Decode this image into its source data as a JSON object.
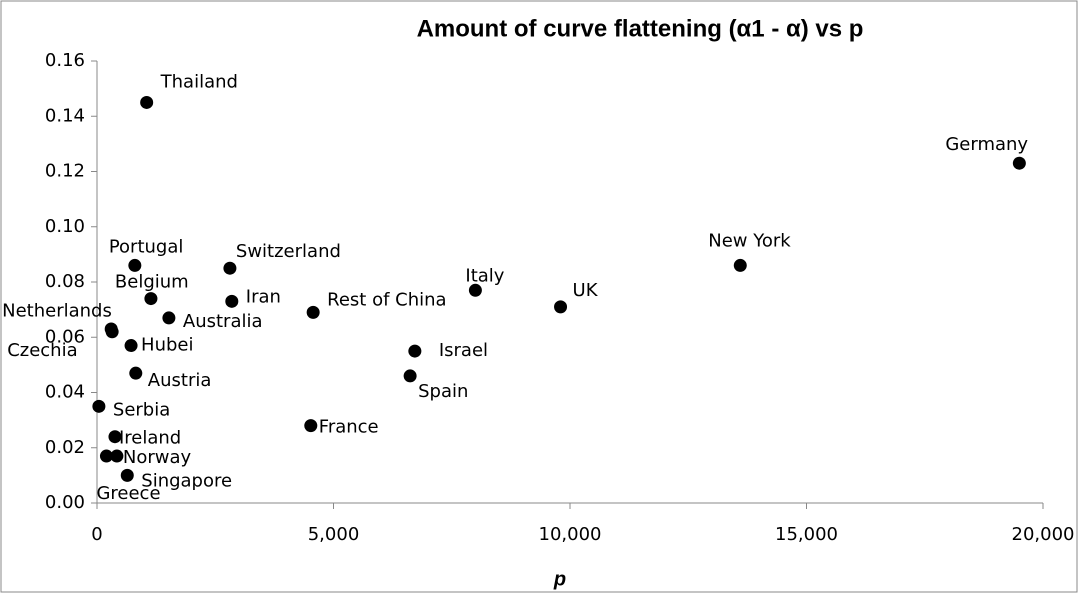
{
  "chart_data": {
    "type": "scatter",
    "title": "Amount of curve flattening (α1 - α) vs p",
    "x_label": "p",
    "color": "#000000",
    "grid": false,
    "xlim": [
      0,
      20000
    ],
    "ylim": [
      0,
      0.16
    ],
    "xticks": [
      0,
      {
        "value": 5000,
        "label": "5,000"
      },
      {
        "value": 10000,
        "label": "10,000"
      },
      {
        "value": 15000,
        "label": "15,000"
      },
      {
        "value": 20000,
        "label": "20,000"
      }
    ],
    "yticks": [
      {
        "value": 0,
        "label": "0.00"
      },
      0.02,
      0.04,
      0.06,
      0.08,
      {
        "value": 0.1,
        "label": "0.10"
      },
      0.12,
      0.14,
      0.16
    ],
    "point_labels": [
      "Thailand",
      "Germany",
      "New York",
      "UK",
      "Italy",
      "Israel",
      "Spain",
      "Rest of China",
      "France",
      "Switzerland",
      "Iran",
      "Portugal",
      "Belgium",
      "Australia",
      "Netherlands",
      "Czechia",
      "Hubei",
      "Austria",
      "Serbia",
      "Ireland",
      "Norway",
      "Greece",
      "Singapore"
    ],
    "x": [
      1050,
      19500,
      13600,
      9800,
      8000,
      6720,
      6620,
      4570,
      4520,
      2810,
      2850,
      800,
      1140,
      1520,
      320,
      300,
      720,
      820,
      40,
      380,
      420,
      200,
      640
    ],
    "y": [
      0.145,
      0.123,
      0.086,
      0.071,
      0.077,
      0.055,
      0.046,
      0.069,
      0.028,
      0.085,
      0.073,
      0.086,
      0.074,
      0.067,
      0.062,
      0.063,
      0.057,
      0.047,
      0.035,
      0.024,
      0.017,
      0.017,
      0.01
    ]
  }
}
